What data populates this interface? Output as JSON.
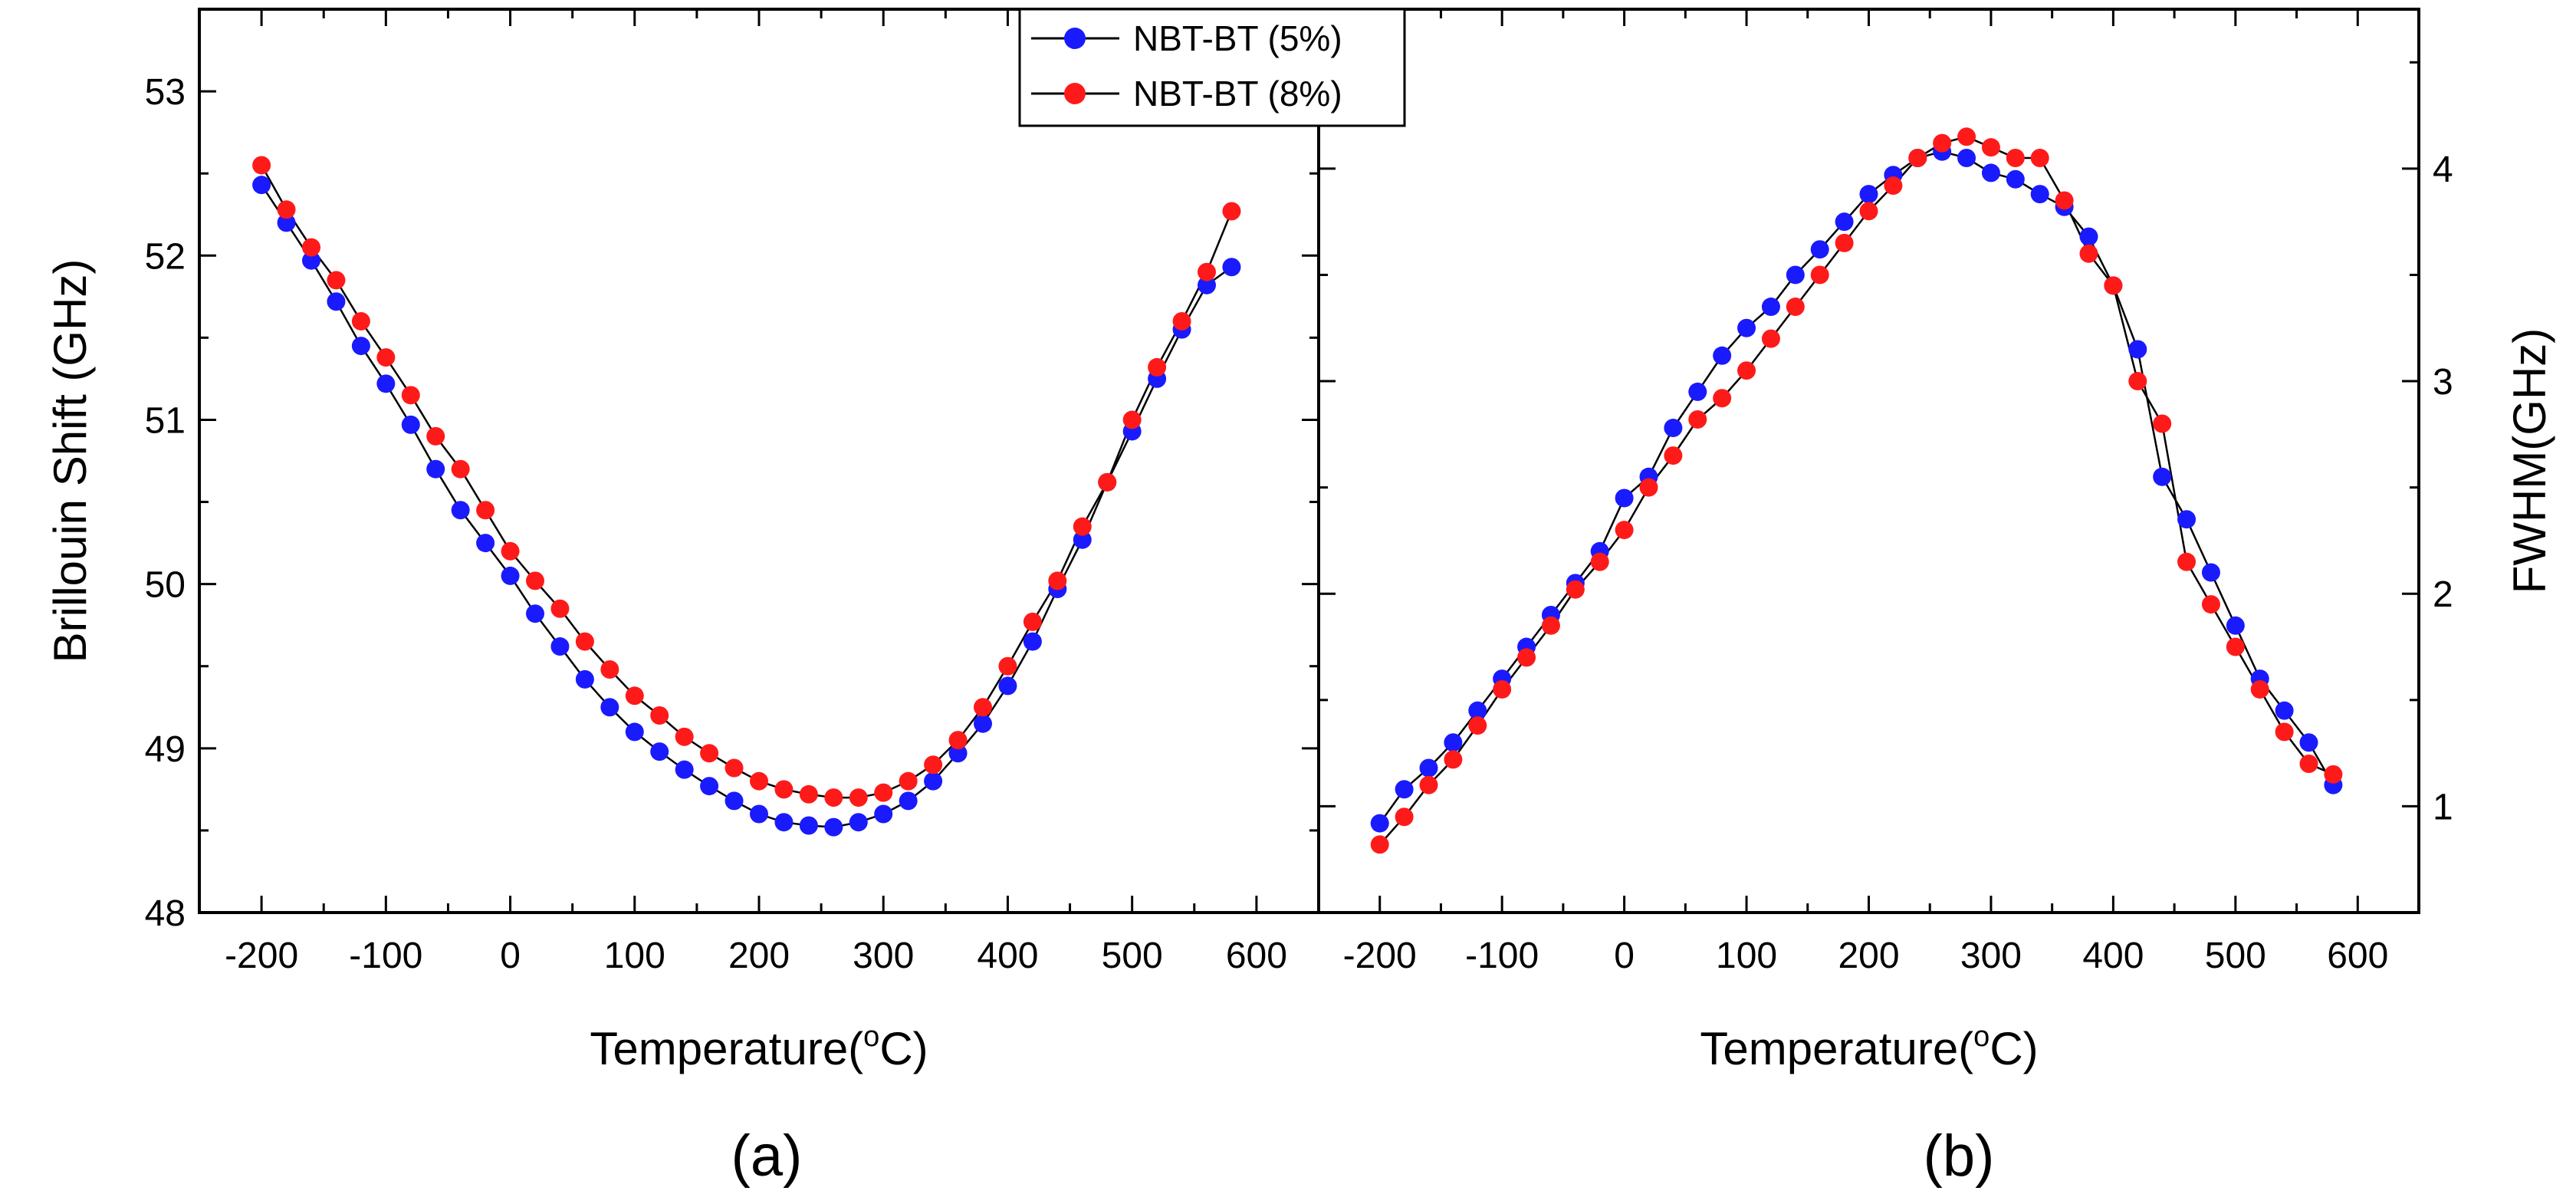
{
  "chart_data": [
    {
      "type": "line",
      "panel_label": "(a)",
      "xlabel_main": "Temperature(",
      "xlabel_sup": "o",
      "xlabel_unit": "C)",
      "ylabel": "Brillouin Shift (GHz)",
      "xlim": [
        -250,
        650
      ],
      "ylim": [
        48,
        53.5
      ],
      "xticks": [
        -200,
        -100,
        0,
        100,
        200,
        300,
        400,
        500,
        600
      ],
      "yticks": [
        48,
        49,
        50,
        51,
        52,
        53
      ],
      "x": [
        -200,
        -180,
        -160,
        -140,
        -120,
        -100,
        -80,
        -60,
        -40,
        -20,
        0,
        20,
        40,
        60,
        80,
        100,
        120,
        140,
        160,
        180,
        200,
        220,
        240,
        260,
        280,
        300,
        320,
        340,
        360,
        380,
        400,
        420,
        440,
        460,
        480,
        500,
        520,
        540,
        560,
        580
      ],
      "series": [
        {
          "name": "NBT-BT (5%)",
          "color": "#1a1aff",
          "values": [
            52.43,
            52.2,
            51.97,
            51.72,
            51.45,
            51.22,
            50.97,
            50.7,
            50.45,
            50.25,
            50.05,
            49.82,
            49.62,
            49.42,
            49.25,
            49.1,
            48.98,
            48.87,
            48.77,
            48.68,
            48.6,
            48.55,
            48.53,
            48.52,
            48.55,
            48.6,
            48.68,
            48.8,
            48.97,
            49.15,
            49.38,
            49.65,
            49.97,
            50.27,
            50.62,
            50.93,
            51.25,
            51.55,
            51.82,
            51.93
          ]
        },
        {
          "name": "NBT-BT (8%)",
          "color": "#ff1a1a",
          "values": [
            52.55,
            52.28,
            52.05,
            51.85,
            51.6,
            51.38,
            51.15,
            50.9,
            50.7,
            50.45,
            50.2,
            50.02,
            49.85,
            49.65,
            49.48,
            49.32,
            49.2,
            49.07,
            48.97,
            48.88,
            48.8,
            48.75,
            48.72,
            48.7,
            48.7,
            48.73,
            48.8,
            48.9,
            49.05,
            49.25,
            49.5,
            49.77,
            50.02,
            50.35,
            50.62,
            51.0,
            51.32,
            51.6,
            51.9,
            52.27
          ]
        }
      ]
    },
    {
      "type": "line",
      "panel_label": "(b)",
      "xlabel_main": "Temperature(",
      "xlabel_sup": "o",
      "xlabel_unit": "C)",
      "ylabel": "FWHM(GHz)",
      "xlim": [
        -250,
        650
      ],
      "ylim": [
        0.5,
        4.75
      ],
      "xticks": [
        -200,
        -100,
        0,
        100,
        200,
        300,
        400,
        500,
        600
      ],
      "yticks": [
        1,
        2,
        3,
        4
      ],
      "x": [
        -200,
        -180,
        -160,
        -140,
        -120,
        -100,
        -80,
        -60,
        -40,
        -20,
        0,
        20,
        40,
        60,
        80,
        100,
        120,
        140,
        160,
        180,
        200,
        220,
        240,
        260,
        280,
        300,
        320,
        340,
        360,
        380,
        400,
        420,
        440,
        460,
        480,
        500,
        520,
        540,
        560,
        580
      ],
      "series": [
        {
          "name": "NBT-BT (5%)",
          "color": "#1a1aff",
          "values": [
            0.92,
            1.08,
            1.18,
            1.3,
            1.45,
            1.6,
            1.75,
            1.9,
            2.05,
            2.2,
            2.45,
            2.55,
            2.78,
            2.95,
            3.12,
            3.25,
            3.35,
            3.5,
            3.62,
            3.75,
            3.88,
            3.97,
            4.05,
            4.08,
            4.05,
            3.98,
            3.95,
            3.88,
            3.82,
            3.68,
            3.45,
            3.15,
            2.55,
            2.35,
            2.1,
            1.85,
            1.6,
            1.45,
            1.3,
            1.1
          ]
        },
        {
          "name": "NBT-BT (8%)",
          "color": "#ff1a1a",
          "values": [
            0.82,
            0.95,
            1.1,
            1.22,
            1.38,
            1.55,
            1.7,
            1.85,
            2.02,
            2.15,
            2.3,
            2.5,
            2.65,
            2.82,
            2.92,
            3.05,
            3.2,
            3.35,
            3.5,
            3.65,
            3.8,
            3.92,
            4.05,
            4.12,
            4.15,
            4.1,
            4.05,
            4.05,
            3.85,
            3.6,
            3.45,
            3.0,
            2.8,
            2.15,
            1.95,
            1.75,
            1.55,
            1.35,
            1.2,
            1.15
          ]
        }
      ]
    }
  ],
  "legend": {
    "placement": "top-center",
    "entries": [
      "NBT-BT (5%)",
      "NBT-BT (8%)"
    ]
  }
}
